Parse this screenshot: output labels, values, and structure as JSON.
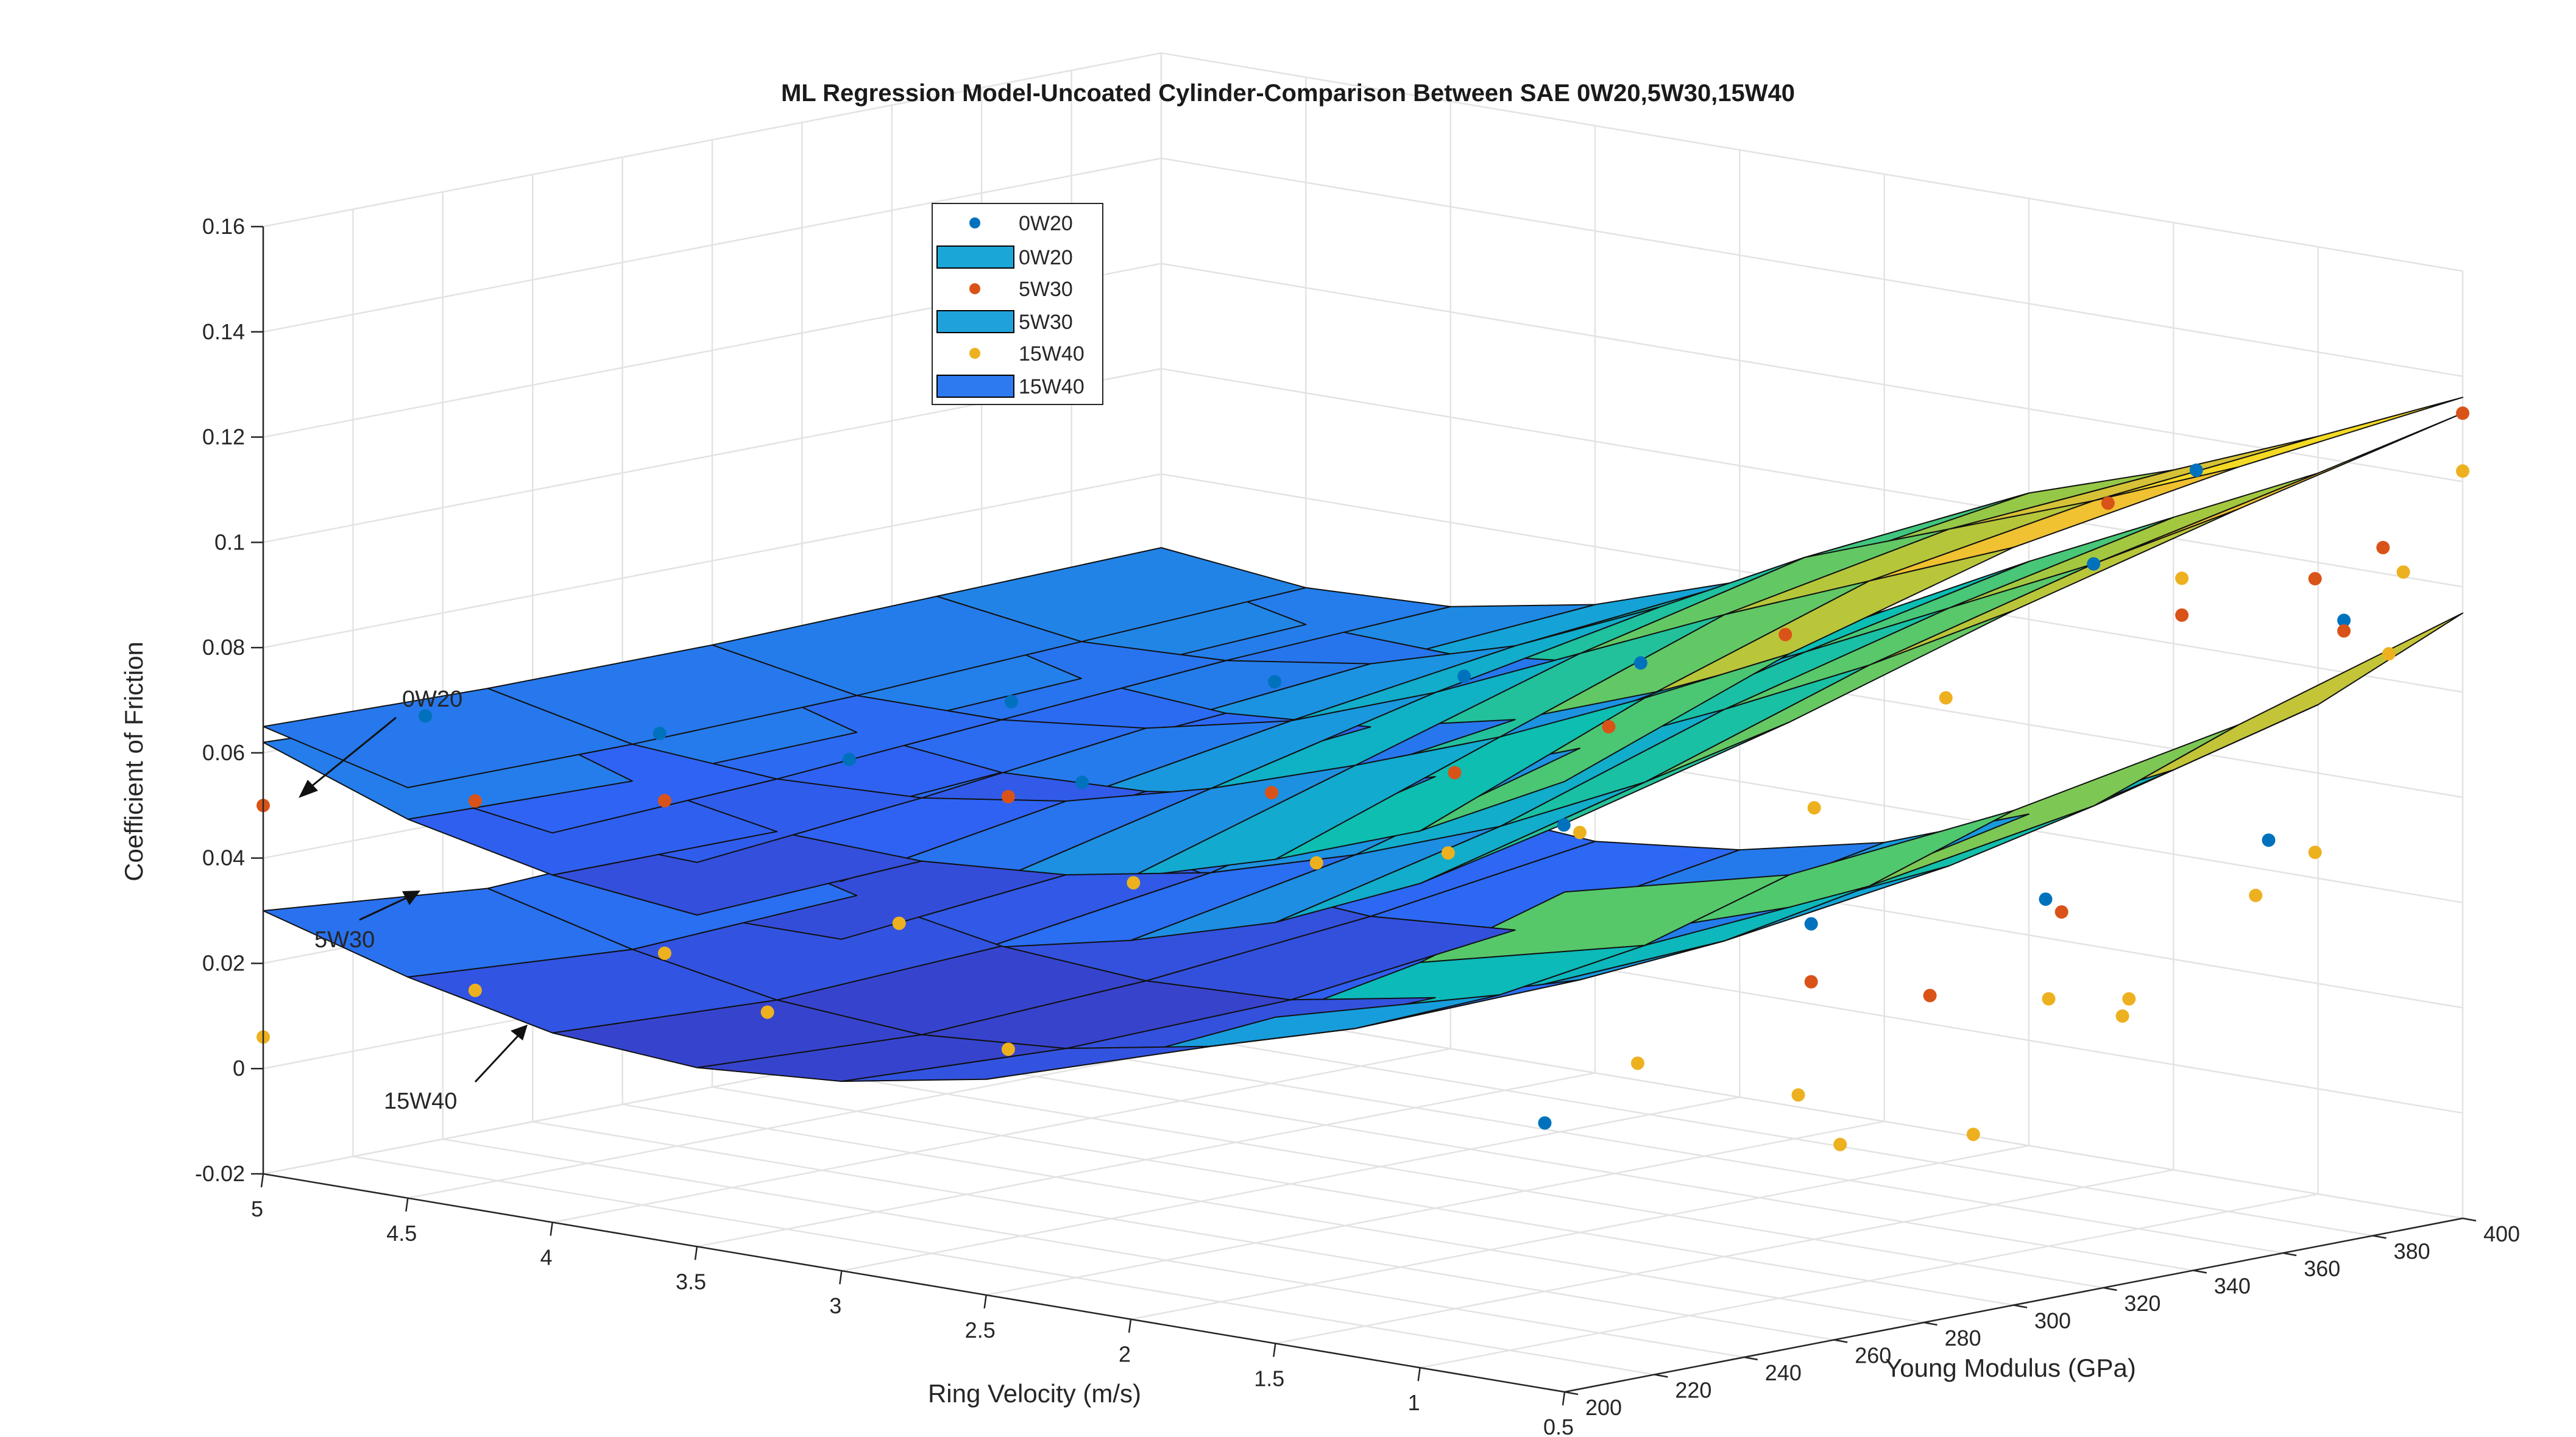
{
  "chart_data": {
    "type": "surface3d",
    "title": "ML Regression Model-Uncoated Cylinder-Comparison Between SAE 0W20,5W30,15W40",
    "xlabel": "Ring Velocity (m/s)",
    "ylabel": "Young Modulus (GPa)",
    "zlabel": "Coefficient of Friction",
    "x_ticks": [
      "0.5",
      "1",
      "1.5",
      "2",
      "2.5",
      "3",
      "3.5",
      "4",
      "4.5",
      "5"
    ],
    "y_ticks": [
      "200",
      "220",
      "240",
      "260",
      "280",
      "300",
      "320",
      "340",
      "360",
      "380",
      "400"
    ],
    "z_ticks": [
      "-0.02",
      "0",
      "0.02",
      "0.04",
      "0.06",
      "0.08",
      "0.1",
      "0.12",
      "0.14",
      "0.16"
    ],
    "xlim": [
      0.5,
      5
    ],
    "ylim": [
      200,
      400
    ],
    "zlim": [
      -0.02,
      0.16
    ],
    "legend": {
      "position": "top-left",
      "entries": [
        {
          "label": "0W20",
          "kind": "marker",
          "color": "#0072BD"
        },
        {
          "label": "0W20",
          "kind": "patch",
          "color": "#1AA7D8"
        },
        {
          "label": "5W30",
          "kind": "marker",
          "color": "#D95319"
        },
        {
          "label": "5W30",
          "kind": "patch",
          "color": "#1FA2DB"
        },
        {
          "label": "15W40",
          "kind": "marker",
          "color": "#EDB120"
        },
        {
          "label": "15W40",
          "kind": "patch",
          "color": "#2D7AF0"
        }
      ]
    },
    "annotations": [
      {
        "text": "0W20",
        "points_to": "0W20 surface"
      },
      {
        "text": "5W30",
        "points_to": "5W30 surface"
      },
      {
        "text": "15W40",
        "points_to": "15W40 surface"
      }
    ],
    "series": [
      {
        "name": "0W20",
        "marker_color": "#0072BD",
        "points": [
          {
            "x": 4.75,
            "y": 220,
            "z": 0.066
          },
          {
            "x": 4.25,
            "y": 240,
            "z": 0.064
          },
          {
            "x": 3.75,
            "y": 250,
            "z": 0.062
          },
          {
            "x": 3.5,
            "y": 270,
            "z": 0.072
          },
          {
            "x": 3.1,
            "y": 260,
            "z": 0.062
          },
          {
            "x": 2.9,
            "y": 290,
            "z": 0.078
          },
          {
            "x": 2.4,
            "y": 300,
            "z": 0.082
          },
          {
            "x": 2.1,
            "y": 320,
            "z": 0.084
          },
          {
            "x": 1.9,
            "y": 290,
            "z": 0.06
          },
          {
            "x": 1.5,
            "y": 260,
            "z": 0.012
          },
          {
            "x": 1.2,
            "y": 300,
            "z": 0.046
          },
          {
            "x": 1.0,
            "y": 350,
            "z": 0.108
          },
          {
            "x": 0.8,
            "y": 360,
            "z": 0.126
          },
          {
            "x": 0.7,
            "y": 320,
            "z": 0.052
          },
          {
            "x": 0.6,
            "y": 380,
            "z": 0.096
          },
          {
            "x": 0.55,
            "y": 360,
            "z": 0.058
          }
        ]
      },
      {
        "name": "5W30",
        "marker_color": "#D95319",
        "points": [
          {
            "x": 5.0,
            "y": 200,
            "z": 0.05
          },
          {
            "x": 4.5,
            "y": 215,
            "z": 0.053
          },
          {
            "x": 4.0,
            "y": 225,
            "z": 0.056
          },
          {
            "x": 3.2,
            "y": 250,
            "z": 0.06
          },
          {
            "x": 2.6,
            "y": 270,
            "z": 0.063
          },
          {
            "x": 2.2,
            "y": 285,
            "z": 0.068
          },
          {
            "x": 1.9,
            "y": 300,
            "z": 0.077
          },
          {
            "x": 1.6,
            "y": 320,
            "z": 0.094
          },
          {
            "x": 1.2,
            "y": 300,
            "z": 0.035
          },
          {
            "x": 1.1,
            "y": 320,
            "z": 0.03
          },
          {
            "x": 0.95,
            "y": 350,
            "z": 0.12
          },
          {
            "x": 0.85,
            "y": 360,
            "z": 0.098
          },
          {
            "x": 0.8,
            "y": 330,
            "z": 0.047
          },
          {
            "x": 0.7,
            "y": 380,
            "z": 0.103
          },
          {
            "x": 0.62,
            "y": 390,
            "z": 0.108
          },
          {
            "x": 0.6,
            "y": 380,
            "z": 0.094
          },
          {
            "x": 0.5,
            "y": 400,
            "z": 0.133
          }
        ]
      },
      {
        "name": "15W40",
        "marker_color": "#EDB120",
        "points": [
          {
            "x": 5.0,
            "y": 200,
            "z": 0.006
          },
          {
            "x": 4.5,
            "y": 215,
            "z": 0.017
          },
          {
            "x": 4.0,
            "y": 225,
            "z": 0.027
          },
          {
            "x": 3.8,
            "y": 235,
            "z": 0.016
          },
          {
            "x": 3.5,
            "y": 245,
            "z": 0.034
          },
          {
            "x": 3.2,
            "y": 250,
            "z": 0.012
          },
          {
            "x": 3.0,
            "y": 265,
            "z": 0.043
          },
          {
            "x": 2.6,
            "y": 280,
            "z": 0.048
          },
          {
            "x": 2.3,
            "y": 290,
            "z": 0.051
          },
          {
            "x": 2.0,
            "y": 300,
            "z": 0.056
          },
          {
            "x": 1.8,
            "y": 300,
            "z": 0.014
          },
          {
            "x": 1.5,
            "y": 320,
            "z": 0.062
          },
          {
            "x": 1.4,
            "y": 310,
            "z": 0.01
          },
          {
            "x": 1.2,
            "y": 330,
            "z": 0.084
          },
          {
            "x": 1.1,
            "y": 300,
            "z": 0.005
          },
          {
            "x": 1.0,
            "y": 340,
            "z": 0.027
          },
          {
            "x": 0.95,
            "y": 320,
            "z": 0.005
          },
          {
            "x": 0.9,
            "y": 350,
            "z": 0.023
          },
          {
            "x": 0.85,
            "y": 360,
            "z": 0.105
          },
          {
            "x": 0.8,
            "y": 345,
            "z": 0.028
          },
          {
            "x": 0.75,
            "y": 370,
            "z": 0.044
          },
          {
            "x": 0.7,
            "y": 380,
            "z": 0.051
          },
          {
            "x": 0.6,
            "y": 390,
            "z": 0.088
          },
          {
            "x": 0.55,
            "y": 390,
            "z": 0.104
          },
          {
            "x": 0.5,
            "y": 400,
            "z": 0.122
          }
        ]
      }
    ],
    "surfaces": [
      {
        "name": "15W40",
        "x_grid": [
          5.0,
          4.5,
          4.0,
          3.5,
          3.0,
          2.5,
          2.0,
          1.5,
          1.0,
          0.5
        ],
        "y_grid": [
          200,
          250,
          300,
          350,
          400
        ],
        "z": [
          [
            0.03,
            0.022,
            0.016,
            0.014,
            0.016,
            0.021,
            0.03,
            0.042,
            0.057,
            0.075
          ],
          [
            0.026,
            0.019,
            0.014,
            0.012,
            0.014,
            0.019,
            0.027,
            0.038,
            0.052,
            0.07
          ],
          [
            0.028,
            0.021,
            0.016,
            0.014,
            0.015,
            0.02,
            0.028,
            0.04,
            0.055,
            0.074
          ],
          [
            0.032,
            0.025,
            0.02,
            0.018,
            0.02,
            0.025,
            0.034,
            0.046,
            0.062,
            0.082
          ],
          [
            0.038,
            0.031,
            0.026,
            0.024,
            0.027,
            0.033,
            0.043,
            0.056,
            0.073,
            0.095
          ]
        ]
      },
      {
        "name": "5W30",
        "x_grid": [
          5.0,
          4.5,
          4.0,
          3.5,
          3.0,
          2.5,
          2.0,
          1.5,
          1.0,
          0.5
        ],
        "y_grid": [
          200,
          250,
          300,
          350,
          400
        ],
        "z": [
          [
            0.062,
            0.052,
            0.046,
            0.043,
            0.043,
            0.046,
            0.052,
            0.06,
            0.072,
            0.088
          ],
          [
            0.06,
            0.051,
            0.046,
            0.045,
            0.047,
            0.052,
            0.06,
            0.07,
            0.083,
            0.099
          ],
          [
            0.06,
            0.052,
            0.049,
            0.05,
            0.054,
            0.062,
            0.072,
            0.084,
            0.097,
            0.112
          ],
          [
            0.061,
            0.054,
            0.052,
            0.054,
            0.06,
            0.07,
            0.082,
            0.095,
            0.108,
            0.123
          ],
          [
            0.062,
            0.056,
            0.055,
            0.058,
            0.065,
            0.077,
            0.091,
            0.104,
            0.117,
            0.133
          ]
        ]
      },
      {
        "name": "0W20",
        "x_grid": [
          5.0,
          4.5,
          4.0,
          3.5,
          3.0,
          2.5,
          2.0,
          1.5,
          1.0,
          0.5
        ],
        "y_grid": [
          200,
          250,
          300,
          350,
          400
        ],
        "z": [
          [
            0.065,
            0.058,
            0.054,
            0.053,
            0.054,
            0.058,
            0.064,
            0.072,
            0.082,
            0.096
          ],
          [
            0.064,
            0.058,
            0.056,
            0.057,
            0.061,
            0.068,
            0.077,
            0.087,
            0.099,
            0.112
          ],
          [
            0.064,
            0.059,
            0.059,
            0.062,
            0.068,
            0.078,
            0.09,
            0.102,
            0.113,
            0.124
          ],
          [
            0.065,
            0.061,
            0.062,
            0.066,
            0.074,
            0.086,
            0.1,
            0.11,
            0.12,
            0.131
          ],
          [
            0.066,
            0.063,
            0.064,
            0.069,
            0.078,
            0.09,
            0.104,
            0.113,
            0.124,
            0.136
          ]
        ]
      }
    ]
  }
}
